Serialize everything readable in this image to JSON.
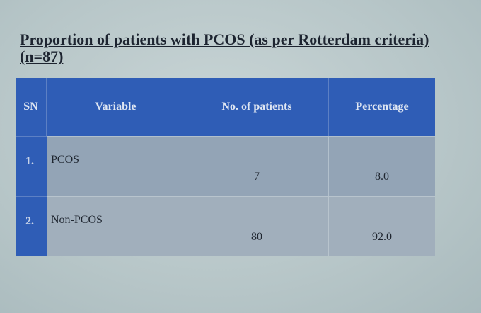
{
  "title": "Proportion of patients with PCOS (as per Rotterdam criteria) (n=87)",
  "table": {
    "header": [
      "SN",
      "Variable",
      "No. of patients",
      "Percentage"
    ],
    "rows": [
      [
        "1.",
        "PCOS",
        "7",
        "8.0"
      ],
      [
        "2.",
        "Non-PCOS",
        "80",
        "92.0"
      ]
    ]
  }
}
